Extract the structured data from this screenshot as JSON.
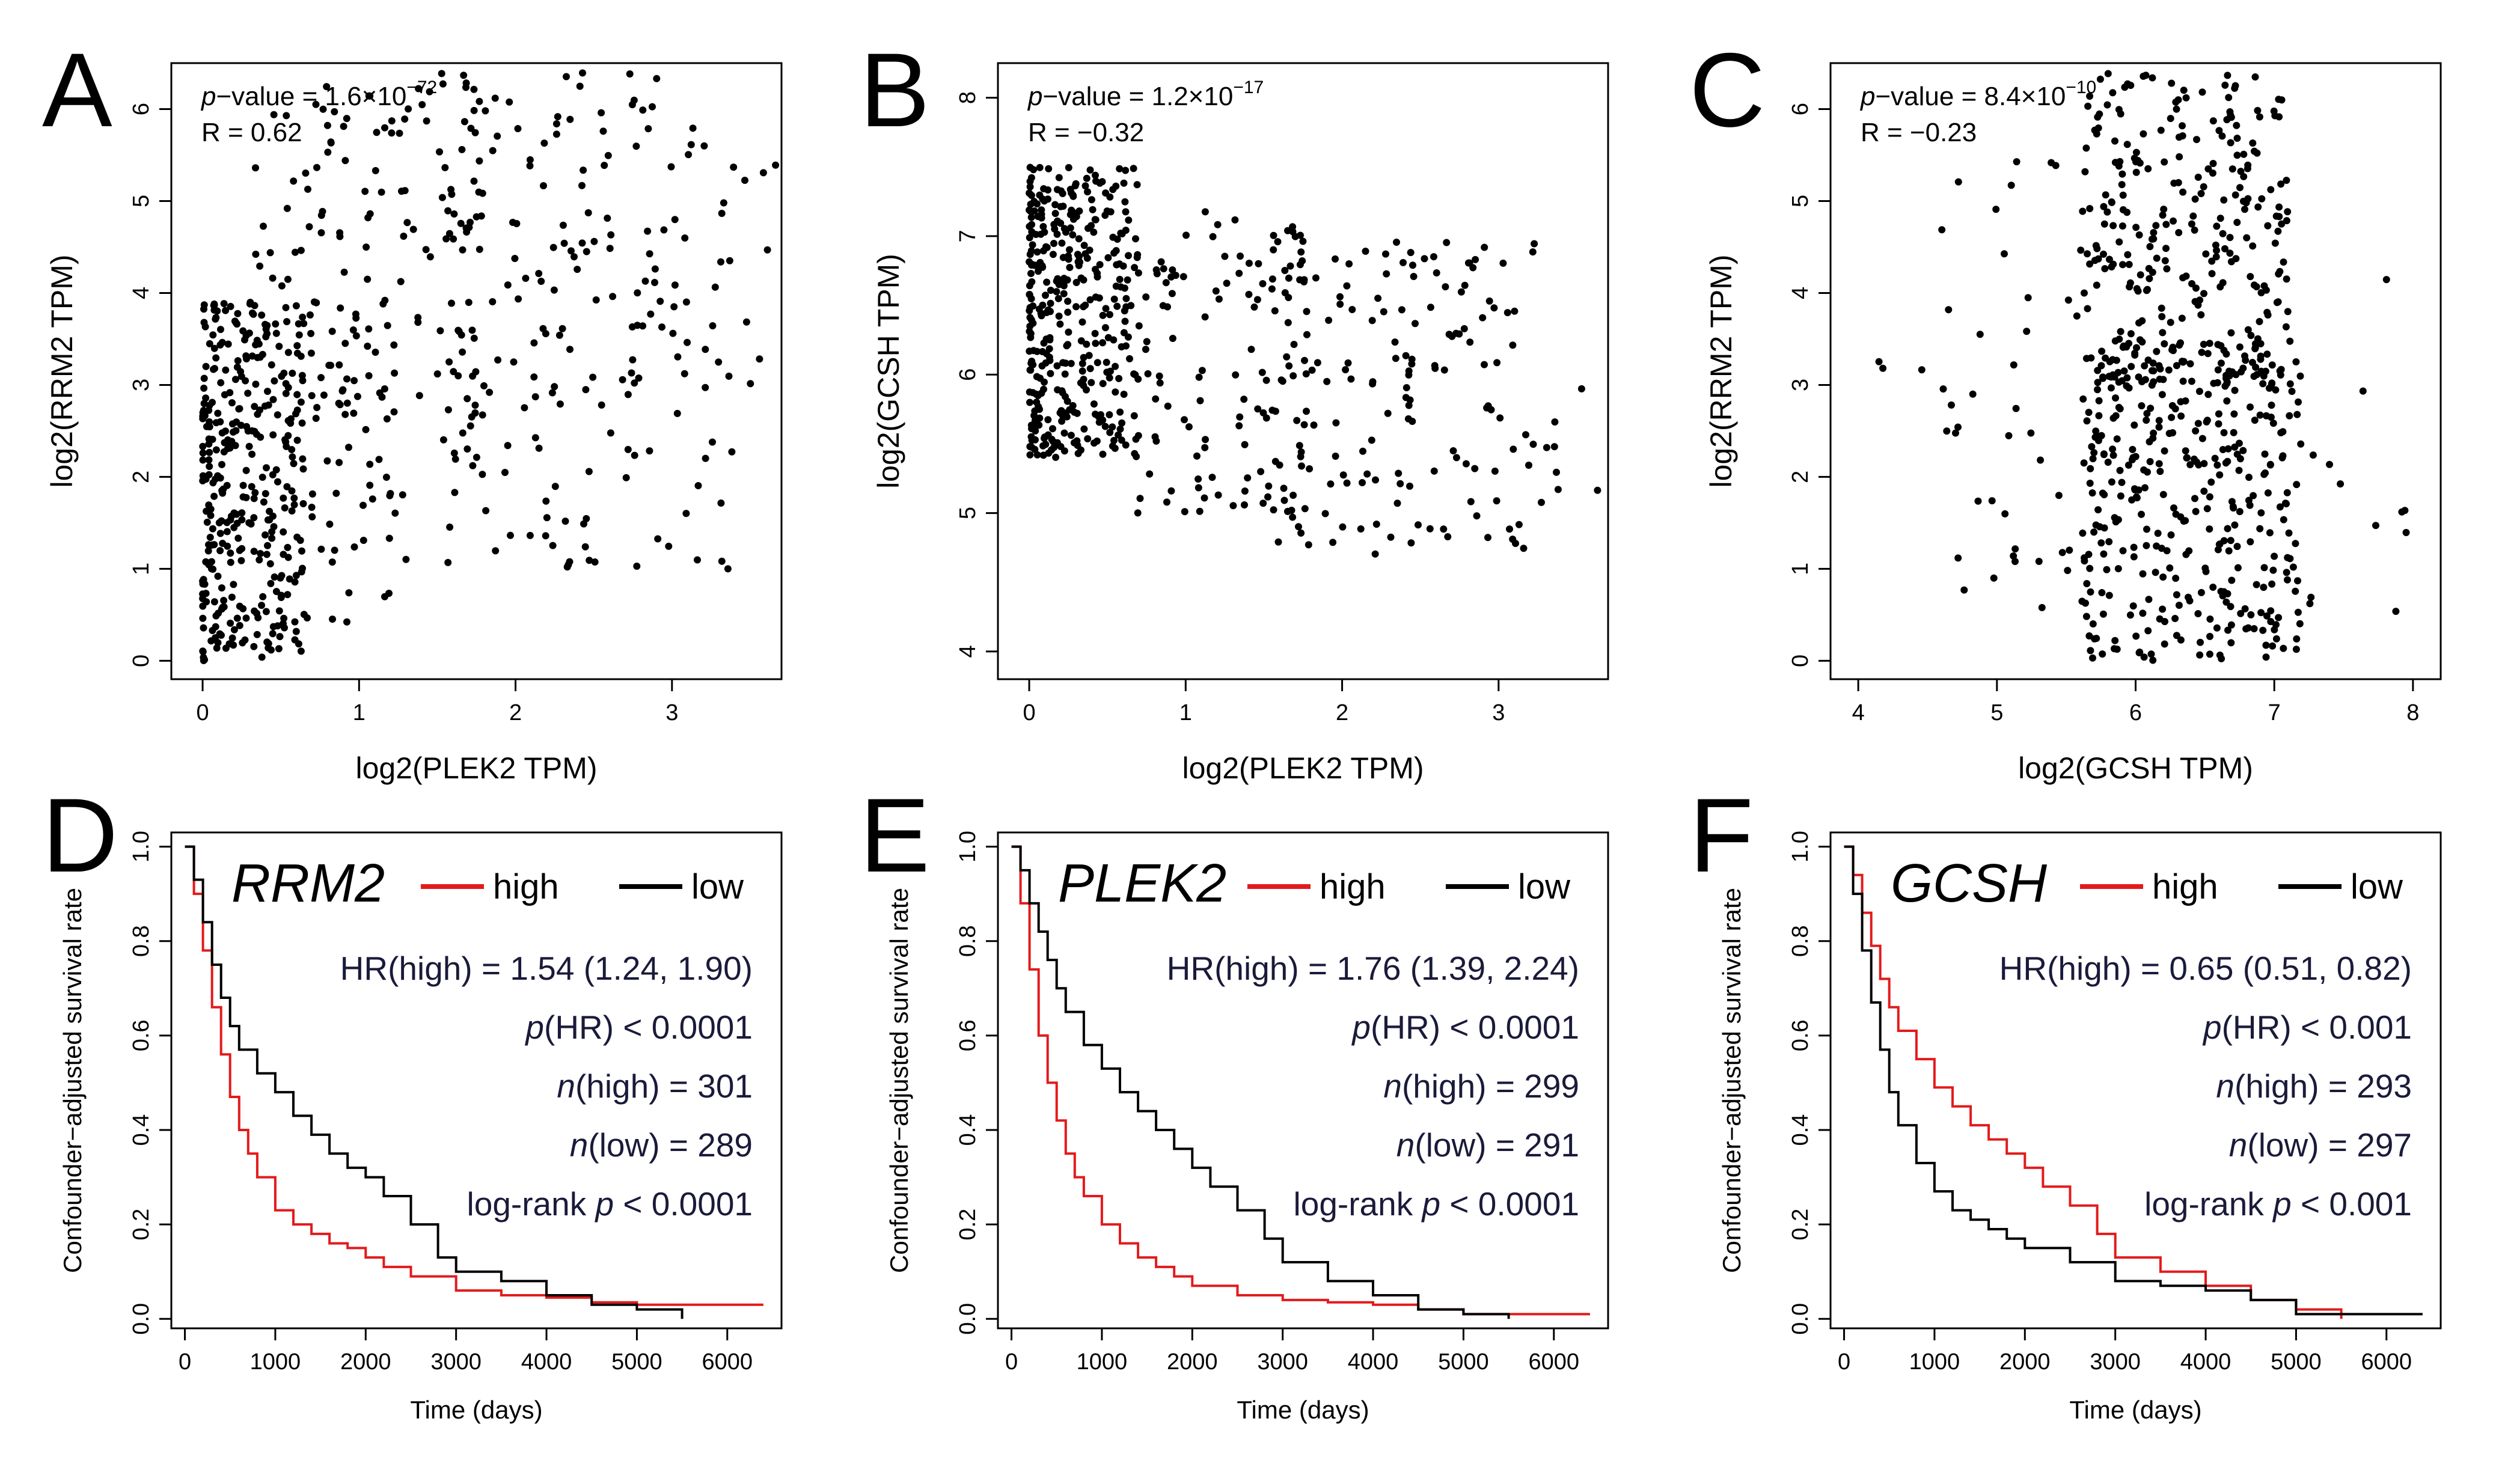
{
  "chart_data": [
    {
      "panel": "A",
      "type": "scatter",
      "xlabel": "log2(PLEK2 TPM)",
      "ylabel": "log2(RRM2 TPM)",
      "xlim": [
        -0.2,
        3.7
      ],
      "ylim": [
        -0.2,
        6.5
      ],
      "xticks": [
        "0",
        "1",
        "2",
        "3"
      ],
      "yticks": [
        "0",
        "1",
        "2",
        "3",
        "4",
        "5",
        "6"
      ],
      "annotation": {
        "p_label": "p",
        "p_text": "−value = 1.6×10",
        "p_exp": "−72",
        "r_text": "R = 0.62"
      },
      "seed": 11,
      "clusters": [
        {
          "n": 340,
          "x": [
            0,
            0.65
          ],
          "y": [
            0,
            3.9
          ],
          "xpow": 1.7
        },
        {
          "n": 50,
          "x": [
            0.5,
            1.3
          ],
          "y": [
            0,
            3.5
          ],
          "xpow": 1
        },
        {
          "n": 140,
          "x": [
            0.3,
            1.8
          ],
          "y": [
            2.5,
            6.3
          ],
          "xpow": 1
        },
        {
          "n": 200,
          "x": [
            1.5,
            3.4
          ],
          "y": [
            1.0,
            6.4
          ],
          "xpow": 1
        },
        {
          "n": 8,
          "x": [
            3.2,
            3.7
          ],
          "y": [
            3.0,
            5.8
          ],
          "xpow": 1
        }
      ]
    },
    {
      "panel": "B",
      "type": "scatter",
      "xlabel": "log2(PLEK2 TPM)",
      "ylabel": "log2(GCSH TPM)",
      "xlim": [
        -0.2,
        3.7
      ],
      "ylim": [
        3.8,
        8.25
      ],
      "xticks": [
        "0",
        "1",
        "2",
        "3"
      ],
      "yticks": [
        "4",
        "5",
        "6",
        "7",
        "8"
      ],
      "annotation": {
        "p_label": "p",
        "p_text": "−value = 1.2×10",
        "p_exp": "−17",
        "r_text": "R = −0.32"
      },
      "seed": 23,
      "clusters": [
        {
          "n": 380,
          "x": [
            0,
            0.7
          ],
          "y": [
            5.4,
            7.5
          ],
          "xpow": 1.5
        },
        {
          "n": 120,
          "x": [
            0.6,
            1.8
          ],
          "y": [
            5.0,
            7.2
          ],
          "xpow": 1
        },
        {
          "n": 150,
          "x": [
            1.5,
            3.3
          ],
          "y": [
            4.7,
            7.0
          ],
          "xpow": 1
        },
        {
          "n": 8,
          "x": [
            3.0,
            3.7
          ],
          "y": [
            4.4,
            6.1
          ],
          "xpow": 1
        }
      ]
    },
    {
      "panel": "C",
      "type": "scatter",
      "xlabel": "log2(GCSH TPM)",
      "ylabel": "log2(RRM2 TPM)",
      "xlim": [
        3.8,
        8.2
      ],
      "ylim": [
        -0.2,
        6.5
      ],
      "xticks": [
        "4",
        "5",
        "6",
        "7",
        "8"
      ],
      "yticks": [
        "0",
        "1",
        "2",
        "3",
        "4",
        "5",
        "6"
      ],
      "annotation": {
        "p_label": "p",
        "p_text": "−value = 8.4×10",
        "p_exp": "−10",
        "r_text": "R = −0.23"
      },
      "seed": 37,
      "clusters": [
        {
          "n": 380,
          "x": [
            5.6,
            7.2
          ],
          "y": [
            0,
            3.5
          ],
          "xpow": 1
        },
        {
          "n": 280,
          "x": [
            5.6,
            7.1
          ],
          "y": [
            3.0,
            6.4
          ],
          "xpow": 1
        },
        {
          "n": 40,
          "x": [
            4.6,
            5.6
          ],
          "y": [
            0.5,
            5.6
          ],
          "xpow": 1
        },
        {
          "n": 12,
          "x": [
            7.2,
            8.1
          ],
          "y": [
            0.5,
            4.5
          ],
          "xpow": 1
        },
        {
          "n": 3,
          "x": [
            3.9,
            4.5
          ],
          "y": [
            3.0,
            3.4
          ],
          "xpow": 1
        }
      ]
    },
    {
      "panel": "D",
      "type": "line",
      "gene": "RRM2",
      "xlabel": "Time (days)",
      "ylabel": "Confounder−adjusted survival rate",
      "xlim": [
        -150,
        6600
      ],
      "ylim": [
        -0.02,
        1.03
      ],
      "xticks": [
        "0",
        "1000",
        "2000",
        "3000",
        "4000",
        "5000",
        "6000"
      ],
      "yticks": [
        "0.0",
        "0.2",
        "0.4",
        "0.6",
        "0.8",
        "1.0"
      ],
      "legend": {
        "high": "high",
        "low": "low"
      },
      "stats": [
        {
          "pre_italic": "",
          "italic": "",
          "text": "HR(high) = 1.54 (1.24, 1.90)"
        },
        {
          "pre_italic": "",
          "italic": "p",
          "text": "(HR) < 0.0001"
        },
        {
          "pre_italic": "",
          "italic": "n",
          "text": "(high) = 301"
        },
        {
          "pre_italic": "",
          "italic": "n",
          "text": "(low) = 289"
        },
        {
          "pre_italic": "log-rank ",
          "italic": "p",
          "text": " < 0.0001"
        }
      ],
      "series": [
        {
          "name": "high",
          "color": "#e31a1c",
          "x": [
            0,
            100,
            200,
            300,
            400,
            500,
            600,
            700,
            800,
            1000,
            1200,
            1400,
            1600,
            1800,
            2000,
            2200,
            2500,
            3000,
            3500,
            4000,
            4500,
            5000,
            6400
          ],
          "y": [
            1.0,
            0.9,
            0.78,
            0.66,
            0.56,
            0.47,
            0.4,
            0.35,
            0.3,
            0.23,
            0.2,
            0.18,
            0.16,
            0.15,
            0.13,
            0.11,
            0.09,
            0.06,
            0.05,
            0.045,
            0.035,
            0.03,
            0.03
          ]
        },
        {
          "name": "low",
          "color": "#000000",
          "x": [
            0,
            100,
            200,
            300,
            400,
            500,
            600,
            800,
            1000,
            1200,
            1400,
            1600,
            1800,
            2000,
            2200,
            2500,
            2800,
            3000,
            3500,
            4000,
            4500,
            5000,
            5500
          ],
          "y": [
            1.0,
            0.93,
            0.84,
            0.75,
            0.68,
            0.62,
            0.57,
            0.52,
            0.48,
            0.43,
            0.39,
            0.35,
            0.32,
            0.3,
            0.26,
            0.2,
            0.13,
            0.1,
            0.08,
            0.05,
            0.03,
            0.02,
            0.0
          ]
        }
      ]
    },
    {
      "panel": "E",
      "type": "line",
      "gene": "PLEK2",
      "xlabel": "Time (days)",
      "ylabel": "Confounder−adjusted survival rate",
      "xlim": [
        -150,
        6600
      ],
      "ylim": [
        -0.02,
        1.03
      ],
      "xticks": [
        "0",
        "1000",
        "2000",
        "3000",
        "4000",
        "5000",
        "6000"
      ],
      "yticks": [
        "0.0",
        "0.2",
        "0.4",
        "0.6",
        "0.8",
        "1.0"
      ],
      "legend": {
        "high": "high",
        "low": "low"
      },
      "stats": [
        {
          "pre_italic": "",
          "italic": "",
          "text": "HR(high) = 1.76 (1.39, 2.24)"
        },
        {
          "pre_italic": "",
          "italic": "p",
          "text": "(HR) < 0.0001"
        },
        {
          "pre_italic": "",
          "italic": "n",
          "text": "(high) = 299"
        },
        {
          "pre_italic": "",
          "italic": "n",
          "text": "(low) = 291"
        },
        {
          "pre_italic": "log-rank ",
          "italic": "p",
          "text": " < 0.0001"
        }
      ],
      "series": [
        {
          "name": "high",
          "color": "#e31a1c",
          "x": [
            0,
            100,
            200,
            300,
            400,
            500,
            600,
            700,
            800,
            1000,
            1200,
            1400,
            1600,
            1800,
            2000,
            2500,
            3000,
            3500,
            4000,
            4500,
            5000,
            6400
          ],
          "y": [
            1.0,
            0.88,
            0.74,
            0.6,
            0.5,
            0.42,
            0.35,
            0.3,
            0.26,
            0.2,
            0.16,
            0.13,
            0.11,
            0.09,
            0.07,
            0.05,
            0.04,
            0.035,
            0.03,
            0.02,
            0.01,
            0.01
          ]
        },
        {
          "name": "low",
          "color": "#000000",
          "x": [
            0,
            100,
            200,
            300,
            400,
            500,
            600,
            800,
            1000,
            1200,
            1400,
            1600,
            1800,
            2000,
            2200,
            2500,
            2800,
            3000,
            3500,
            4000,
            4500,
            5000,
            5500
          ],
          "y": [
            1.0,
            0.95,
            0.88,
            0.82,
            0.76,
            0.7,
            0.65,
            0.58,
            0.53,
            0.48,
            0.44,
            0.4,
            0.36,
            0.32,
            0.28,
            0.23,
            0.17,
            0.12,
            0.08,
            0.05,
            0.02,
            0.01,
            0.0
          ]
        }
      ]
    },
    {
      "panel": "F",
      "type": "line",
      "gene": "GCSH",
      "xlabel": "Time (days)",
      "ylabel": "Confounder−adjusted survival rate",
      "xlim": [
        -150,
        6600
      ],
      "ylim": [
        -0.02,
        1.03
      ],
      "xticks": [
        "0",
        "1000",
        "2000",
        "3000",
        "4000",
        "5000",
        "6000"
      ],
      "yticks": [
        "0.0",
        "0.2",
        "0.4",
        "0.6",
        "0.8",
        "1.0"
      ],
      "legend": {
        "high": "high",
        "low": "low"
      },
      "stats": [
        {
          "pre_italic": "",
          "italic": "",
          "text": "HR(high) = 0.65 (0.51, 0.82)"
        },
        {
          "pre_italic": "",
          "italic": "p",
          "text": "(HR) < 0.001"
        },
        {
          "pre_italic": "",
          "italic": "n",
          "text": "(high) = 293"
        },
        {
          "pre_italic": "",
          "italic": "n",
          "text": "(low) = 297"
        },
        {
          "pre_italic": "log-rank ",
          "italic": "p",
          "text": " < 0.001"
        }
      ],
      "series": [
        {
          "name": "high",
          "color": "#e31a1c",
          "x": [
            0,
            100,
            200,
            300,
            400,
            500,
            600,
            800,
            1000,
            1200,
            1400,
            1600,
            1800,
            2000,
            2200,
            2500,
            2800,
            3000,
            3500,
            4000,
            4500,
            5000,
            5500
          ],
          "y": [
            1.0,
            0.94,
            0.86,
            0.79,
            0.72,
            0.66,
            0.61,
            0.55,
            0.49,
            0.45,
            0.41,
            0.38,
            0.35,
            0.32,
            0.28,
            0.24,
            0.18,
            0.13,
            0.1,
            0.07,
            0.04,
            0.02,
            0.0
          ]
        },
        {
          "name": "low",
          "color": "#000000",
          "x": [
            0,
            100,
            200,
            300,
            400,
            500,
            600,
            800,
            1000,
            1200,
            1400,
            1600,
            1800,
            2000,
            2500,
            3000,
            3500,
            4000,
            4500,
            5000,
            6400
          ],
          "y": [
            1.0,
            0.9,
            0.78,
            0.67,
            0.57,
            0.48,
            0.41,
            0.33,
            0.27,
            0.23,
            0.21,
            0.19,
            0.17,
            0.15,
            0.12,
            0.08,
            0.07,
            0.06,
            0.04,
            0.01,
            0.01
          ]
        }
      ]
    }
  ]
}
